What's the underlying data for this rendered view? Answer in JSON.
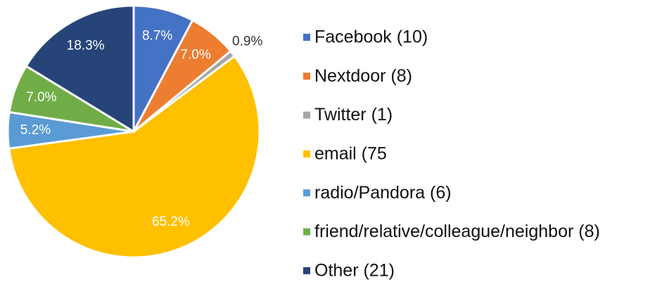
{
  "chart_data": {
    "type": "pie",
    "categories": [
      "Facebook (10)",
      "Nextdoor (8)",
      "Twitter (1)",
      "email (75",
      "radio/Pandora (6)",
      "friend/relative/colleague/neighbor (8)",
      "Other (21)"
    ],
    "values": [
      8.7,
      7.0,
      0.9,
      65.2,
      5.2,
      7.0,
      18.3
    ],
    "value_labels": [
      "8.7%",
      "7.0%",
      "0.9%",
      "65.2%",
      "5.2%",
      "7.0%",
      "18.3%"
    ],
    "colors": [
      "#4472c4",
      "#ed7d31",
      "#a5a5a5",
      "#ffc000",
      "#5b9bd5",
      "#70ad47",
      "#264478"
    ],
    "legend": "right"
  }
}
